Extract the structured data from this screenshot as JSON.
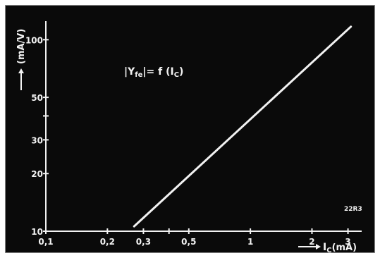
{
  "chart_data": {
    "type": "line",
    "x_scale": "log",
    "y_scale": "log",
    "xlim": [
      0.1,
      3.5
    ],
    "ylim": [
      10,
      125
    ],
    "x_ticks": [
      0.1,
      0.2,
      0.3,
      0.4,
      0.5,
      1,
      2,
      3
    ],
    "x_tick_labels": [
      "0,1",
      "0,2",
      "0,3",
      "",
      "0,5",
      "1",
      "2",
      "3"
    ],
    "y_ticks": [
      10,
      20,
      30,
      40,
      50,
      100
    ],
    "y_tick_labels": [
      "10",
      "20",
      "30",
      "",
      "50",
      "100"
    ],
    "xlabel": "I_C (mA)",
    "ylabel": "(mA/V)",
    "annotation": "|Y_fe| = f(I_C)",
    "code": "22R3",
    "grid": false,
    "colors": {
      "background": "#0a0a0a",
      "foreground": "#f2f2f2"
    },
    "series": [
      {
        "x": [
          0.27,
          3.1
        ],
        "y": [
          10.6,
          117
        ]
      }
    ]
  }
}
